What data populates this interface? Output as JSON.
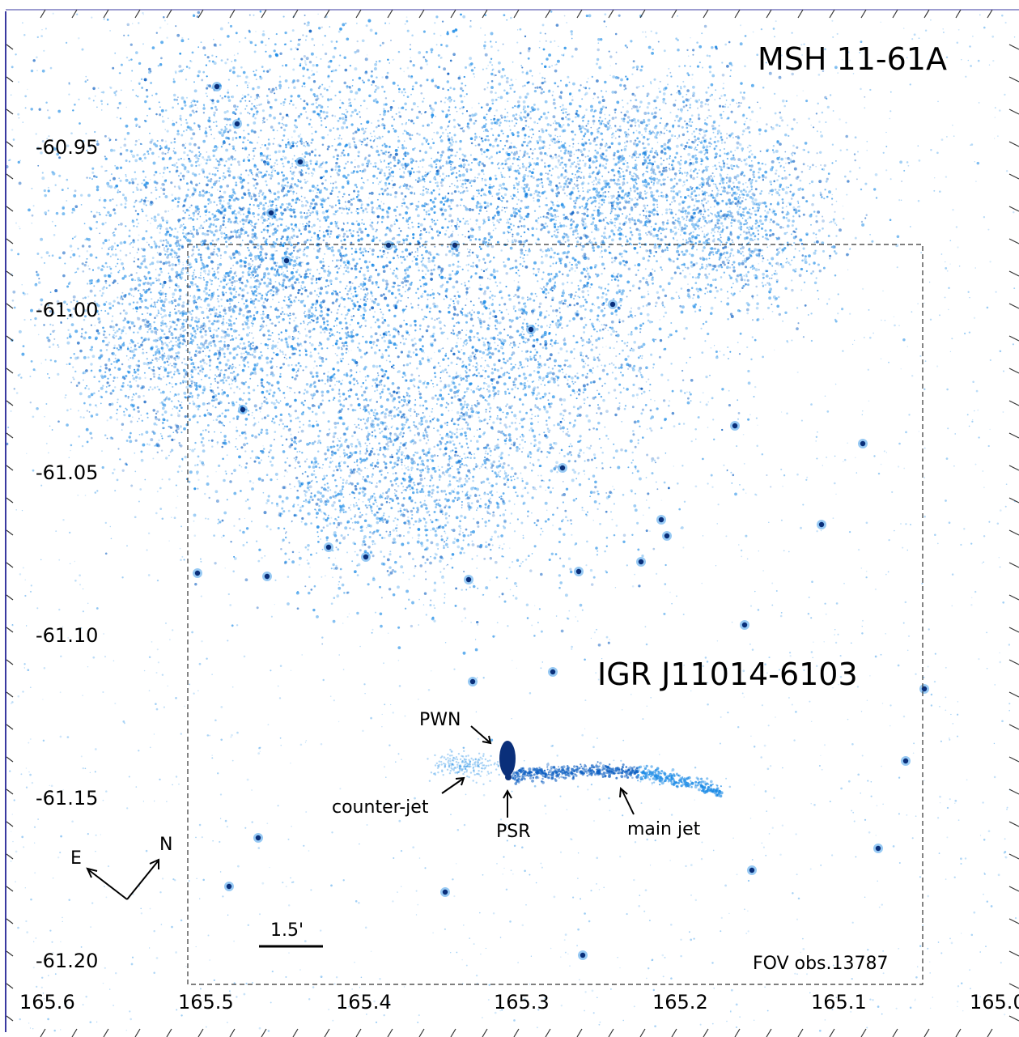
{
  "figure": {
    "remnant_label": "MSH 11-61A",
    "source_label": "IGR J11014-6103",
    "fov_label": "FOV obs.13787",
    "scale_label": "1.5'",
    "compass": {
      "east": "E",
      "north": "N"
    },
    "annotations": {
      "pwn": "PWN",
      "psr": "PSR",
      "counter_jet": "counter-jet",
      "main_jet": "main jet"
    },
    "dec_ticks": [
      "-60.95",
      "-61.00",
      "-61.05",
      "-61.10",
      "-61.15",
      "-61.20"
    ],
    "ra_ticks": [
      "165.6",
      "165.5",
      "165.4",
      "165.3",
      "165.2",
      "165.1",
      "165.0"
    ],
    "colors": {
      "emission": "#1a8ae6",
      "emission_dense": "#0d5fc2",
      "point_source": "#0a2f7a",
      "frame": "#3a3aa0"
    }
  }
}
